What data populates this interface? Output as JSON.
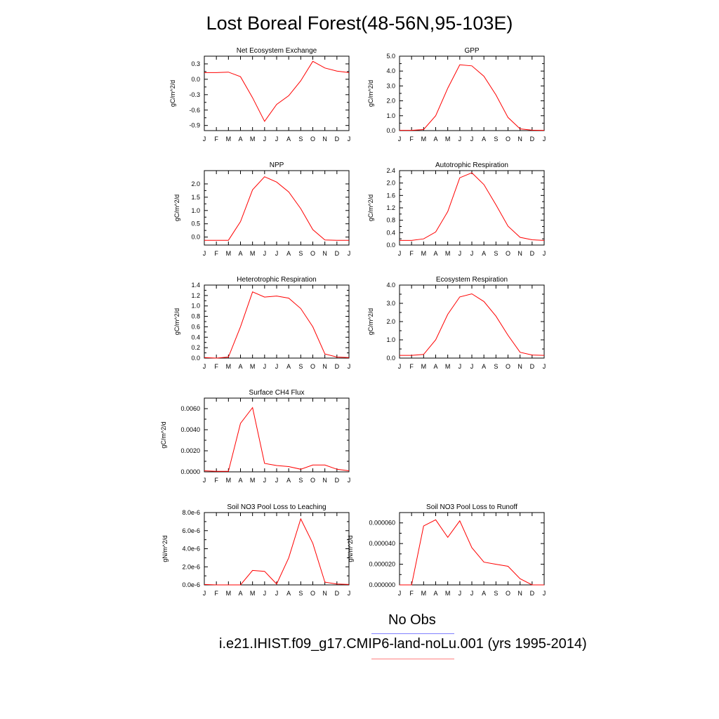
{
  "title": "Lost Boreal Forest(48-56N,95-103E)",
  "month_labels": [
    "J",
    "F",
    "M",
    "A",
    "M",
    "J",
    "J",
    "A",
    "S",
    "O",
    "N",
    "D",
    "J"
  ],
  "colors": {
    "model": "#ff0000",
    "obs": "#8080ff",
    "model_legend": "#ff8080",
    "axis": "#000000"
  },
  "legend": {
    "obs_label": "No Obs",
    "model_label": "i.e21.IHIST.f09_g17.CMIP6-land-noLu.001 (yrs 1995-2014)"
  },
  "chart_data": [
    {
      "type": "line",
      "title": "Net Ecosystem Exchange",
      "ylabel": "gC/m^2/d",
      "ylim": [
        -1.0,
        0.45
      ],
      "yticks": [
        -0.9,
        -0.6,
        -0.3,
        0.0,
        0.3
      ],
      "yticklabels": [
        "-0.9",
        "-0.6",
        "-0.3",
        "0.0",
        "0.3"
      ],
      "values": [
        0.13,
        0.13,
        0.14,
        0.05,
        -0.36,
        -0.82,
        -0.49,
        -0.32,
        -0.03,
        0.35,
        0.22,
        0.16,
        0.13
      ]
    },
    {
      "type": "line",
      "title": "GPP",
      "ylabel": "gC/m^2/d",
      "ylim": [
        0.0,
        5.0
      ],
      "yticks": [
        0,
        1,
        2,
        3,
        4,
        5
      ],
      "yticklabels": [
        "0.0",
        "1.0",
        "2.0",
        "3.0",
        "4.0",
        "5.0"
      ],
      "values": [
        0.02,
        0.02,
        0.07,
        1.0,
        2.85,
        4.42,
        4.35,
        3.65,
        2.4,
        0.88,
        0.12,
        0.03,
        0.02
      ]
    },
    {
      "type": "line",
      "title": "NPP",
      "ylabel": "gC/m^2/d",
      "ylim": [
        -0.3,
        2.5
      ],
      "yticks": [
        0,
        0.5,
        1,
        1.5,
        2
      ],
      "yticklabels": [
        "0.0",
        "0.5",
        "1.0",
        "1.5",
        "2.0"
      ],
      "values": [
        -0.12,
        -0.12,
        -0.12,
        0.58,
        1.78,
        2.27,
        2.07,
        1.7,
        1.07,
        0.28,
        -0.11,
        -0.12,
        -0.12
      ]
    },
    {
      "type": "line",
      "title": "Autotrophic Respiration",
      "ylabel": "gC/m^2/d",
      "ylim": [
        0.0,
        2.4
      ],
      "yticks": [
        0,
        0.4,
        0.8,
        1.2,
        1.6,
        2.0,
        2.4
      ],
      "yticklabels": [
        "0.0",
        "0.4",
        "0.8",
        "1.2",
        "1.6",
        "2.0",
        "2.4"
      ],
      "values": [
        0.15,
        0.15,
        0.2,
        0.42,
        1.08,
        2.17,
        2.33,
        1.95,
        1.3,
        0.61,
        0.25,
        0.17,
        0.15
      ]
    },
    {
      "type": "line",
      "title": "Heterotrophic Respiration",
      "ylabel": "gC/m^2/d",
      "ylim": [
        0.0,
        1.4
      ],
      "yticks": [
        0,
        0.2,
        0.4,
        0.6,
        0.8,
        1.0,
        1.2,
        1.4
      ],
      "yticklabels": [
        "0.0",
        "0.2",
        "0.4",
        "0.6",
        "0.8",
        "1.0",
        "1.2",
        "1.4"
      ],
      "values": [
        0.01,
        0.0,
        0.02,
        0.6,
        1.27,
        1.17,
        1.19,
        1.15,
        0.95,
        0.6,
        0.08,
        0.02,
        0.01
      ]
    },
    {
      "type": "line",
      "title": "Ecosystem Respiration",
      "ylabel": "gC/m^2/d",
      "ylim": [
        0.0,
        4.0
      ],
      "yticks": [
        0,
        1,
        2,
        3,
        4
      ],
      "yticklabels": [
        "0.0",
        "1.0",
        "2.0",
        "3.0",
        "4.0"
      ],
      "values": [
        0.15,
        0.15,
        0.2,
        1.0,
        2.4,
        3.35,
        3.52,
        3.1,
        2.3,
        1.25,
        0.32,
        0.17,
        0.15
      ]
    },
    {
      "type": "line",
      "title": "Surface CH4 Flux",
      "ylabel": "gC/m^2/d",
      "ylim": [
        0.0,
        0.007
      ],
      "yticks": [
        0,
        0.002,
        0.004,
        0.006
      ],
      "yticklabels": [
        "0.0000",
        "0.0020",
        "0.0040",
        "0.0060"
      ],
      "values": [
        0.0001,
        5e-05,
        5e-05,
        0.0046,
        0.0061,
        0.0008,
        0.0006,
        0.0005,
        0.00025,
        0.00065,
        0.00065,
        0.00025,
        0.0001
      ]
    },
    {
      "type": "line",
      "title": "Soil NO3 Pool Loss to Leaching",
      "ylabel": "gN/m^2/d",
      "ylim": [
        0.0,
        8e-06
      ],
      "yticks": [
        0,
        2e-06,
        4e-06,
        6e-06,
        8e-06
      ],
      "yticklabels": [
        "0.0e-6",
        "2.0e-6",
        "4.0e-6",
        "6.0e-6",
        "8.0e-6"
      ],
      "values": [
        5e-08,
        0.0,
        0.0,
        0.0,
        1.6e-06,
        1.5e-06,
        1e-07,
        3e-06,
        7.3e-06,
        4.6e-06,
        3e-07,
        1e-07,
        5e-08
      ]
    },
    {
      "type": "line",
      "title": "Soil NO3 Pool Loss to Runoff",
      "ylabel": "gN/m^2/d",
      "ylim": [
        0.0,
        7e-05
      ],
      "yticks": [
        0,
        2e-05,
        4e-05,
        6e-05
      ],
      "yticklabels": [
        "0.000000",
        "0.000020",
        "0.000040",
        "0.000060"
      ],
      "values": [
        0.0,
        0.0,
        5.7e-05,
        6.3e-05,
        4.6e-05,
        6.2e-05,
        3.6e-05,
        2.2e-05,
        2e-05,
        1.8e-05,
        6e-06,
        0.0,
        0.0
      ]
    }
  ]
}
